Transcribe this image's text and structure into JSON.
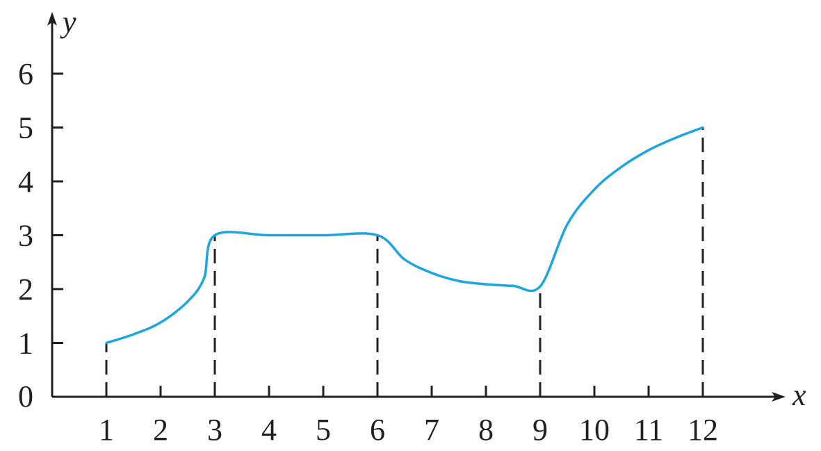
{
  "chart_data": {
    "type": "line",
    "title": "",
    "xlabel": "x",
    "ylabel": "y",
    "xlim": [
      0,
      13.5
    ],
    "ylim": [
      0,
      6.7
    ],
    "x_ticks": [
      1,
      2,
      3,
      4,
      5,
      6,
      7,
      8,
      9,
      10,
      11,
      12
    ],
    "x_tick_labels": [
      "1",
      "2",
      "3",
      "4",
      "5",
      "6",
      "7",
      "8",
      "9",
      "10",
      "11",
      "12"
    ],
    "y_ticks": [
      1,
      2,
      3,
      4,
      5,
      6
    ],
    "y_tick_labels": [
      "1",
      "2",
      "3",
      "4",
      "5",
      "6"
    ],
    "origin_label": "0",
    "grid": false,
    "line_color": "#1ba6e0",
    "axis_color": "#231f20",
    "series": [
      {
        "x": [
          1,
          1.5,
          2,
          2.5,
          2.8,
          3,
          4,
          5,
          6,
          6.5,
          7,
          7.5,
          8,
          8.5,
          9,
          9.5,
          10,
          10.5,
          11,
          11.5,
          12
        ],
        "values": [
          1.0,
          1.16,
          1.38,
          1.77,
          2.2,
          3.0,
          3.0,
          3.0,
          3.0,
          2.55,
          2.3,
          2.15,
          2.09,
          2.06,
          2.05,
          3.2,
          3.85,
          4.27,
          4.58,
          4.81,
          5.0
        ]
      }
    ],
    "dashed_verticals": [
      {
        "x": 1,
        "y": 1
      },
      {
        "x": 3,
        "y": 3
      },
      {
        "x": 6,
        "y": 3
      },
      {
        "x": 9,
        "y": 2.05
      },
      {
        "x": 12,
        "y": 5
      }
    ]
  }
}
